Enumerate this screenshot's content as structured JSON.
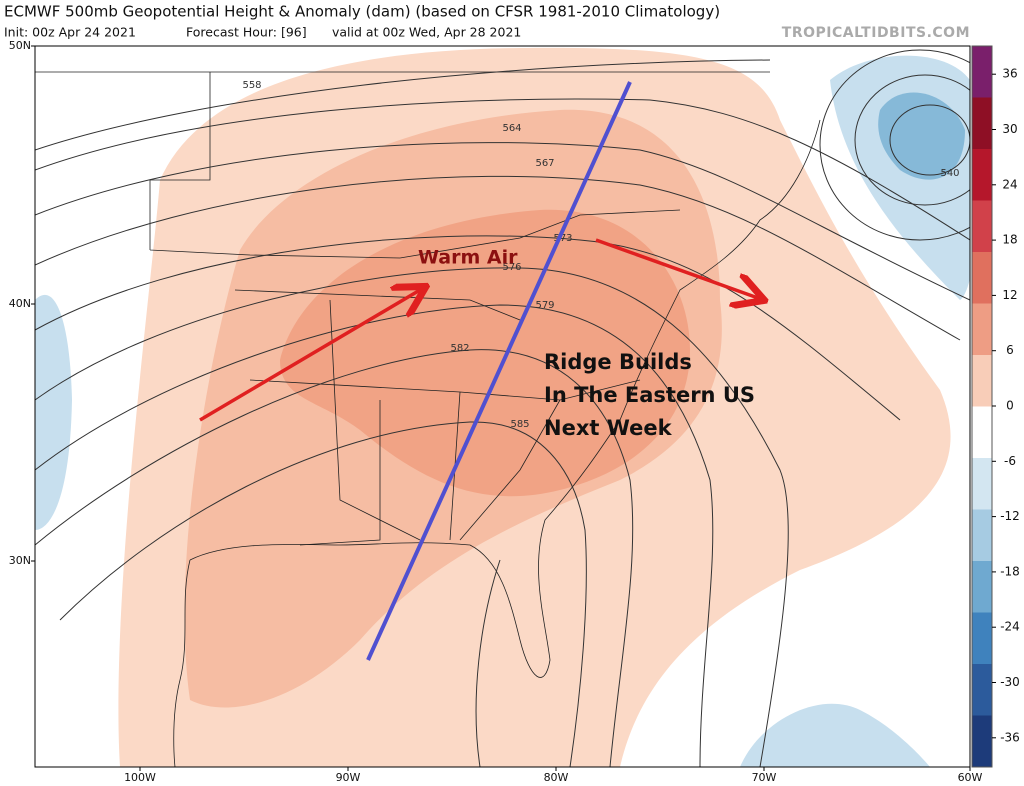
{
  "header": {
    "title": "ECMWF 500mb Geopotential Height & Anomaly (dam) (based on CFSR 1981-2010 Climatology)",
    "init": "Init: 00z Apr 24 2021",
    "forecast_hour": "Forecast Hour: [96]",
    "valid": "valid at 00z Wed, Apr 28 2021",
    "credit": "TROPICALTIDBITS.COM"
  },
  "map": {
    "lat_labels": [
      "50N",
      "40N",
      "30N"
    ],
    "lon_labels": [
      "100W",
      "90W",
      "80W",
      "70W",
      "60W"
    ],
    "contour_labels": [
      "558",
      "564",
      "567",
      "573",
      "576",
      "579",
      "582",
      "585",
      "540"
    ]
  },
  "colorbar": {
    "ticks": [
      36,
      30,
      24,
      18,
      12,
      6,
      0,
      -6,
      -12,
      -18,
      -24,
      -30,
      -36
    ]
  },
  "annotations": {
    "warm_air": "Warm Air",
    "ridge": [
      "Ridge Builds",
      "In The Eastern US",
      "Next Week"
    ]
  }
}
